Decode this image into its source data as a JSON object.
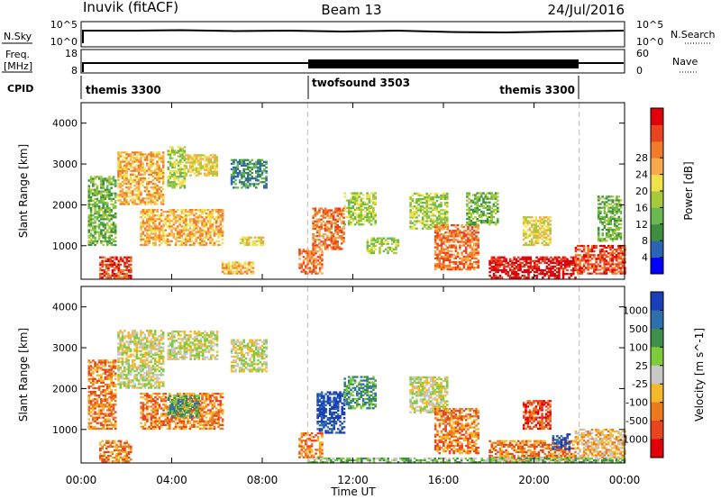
{
  "header": {
    "station": "Inuvik (fitACF)",
    "beam": "Beam 13",
    "date": "24/Jul/2016"
  },
  "top_panels": {
    "nsky": {
      "label": "N.Sky",
      "ticks": [
        "10^5",
        "10^0"
      ],
      "right_label": "N.Search",
      "right_ticks": [
        "10^5",
        "10^0"
      ]
    },
    "freq": {
      "label_line1": "Freq.",
      "label_line2": "[MHz]",
      "ticks": [
        "18",
        "8"
      ],
      "right_label": "Nave",
      "right_ticks": [
        "60",
        "0"
      ]
    },
    "cpid": {
      "label": "CPID",
      "segments": [
        {
          "name": "themis 3300",
          "start": 0,
          "end": 10
        },
        {
          "name": "twofsound 3503",
          "start": 10,
          "end": 22
        },
        {
          "name": "themis 3300",
          "start": 22,
          "end": 24
        }
      ]
    }
  },
  "x_axis": {
    "label": "Time UT",
    "ticks": [
      "00:00",
      "04:00",
      "08:00",
      "12:00",
      "16:00",
      "20:00",
      "00:00"
    ]
  },
  "chart_data": [
    {
      "type": "heatmap",
      "name": "power",
      "ylabel": "Slant Range [km]",
      "xlim": [
        0,
        24
      ],
      "ylim": [
        180,
        4500
      ],
      "yticks": [
        "1000",
        "2000",
        "3000",
        "4000"
      ],
      "colorbar_label": "Power [dB]",
      "colorbar_ticks": [
        "4",
        "8",
        "12",
        "16",
        "20",
        "24",
        "28"
      ],
      "colorbar_colors": [
        "#0000ff",
        "#2d63b4",
        "#3d8f3d",
        "#69b84f",
        "#a8c93a",
        "#f0e14a",
        "#f7a94a",
        "#f07c2a",
        "#e8441f",
        "#e0000a"
      ],
      "regions": [
        {
          "t0": 0.3,
          "t1": 1.5,
          "r0": 1000,
          "r1": 2700,
          "level": 3
        },
        {
          "t0": 1.6,
          "t1": 3.6,
          "r0": 2000,
          "r1": 3300,
          "level": 6
        },
        {
          "t0": 3.8,
          "t1": 4.6,
          "r0": 2400,
          "r1": 3400,
          "level": 4
        },
        {
          "t0": 4.6,
          "t1": 6.0,
          "r0": 2700,
          "r1": 3200,
          "level": 5
        },
        {
          "t0": 2.6,
          "t1": 6.2,
          "r0": 1000,
          "r1": 1900,
          "level": 6
        },
        {
          "t0": 6.6,
          "t1": 8.2,
          "r0": 2400,
          "r1": 3100,
          "level": 2
        },
        {
          "t0": 7.0,
          "t1": 8.0,
          "r0": 1000,
          "r1": 1200,
          "level": 5
        },
        {
          "t0": 0.8,
          "t1": 2.2,
          "r0": 200,
          "r1": 700,
          "level": 8
        },
        {
          "t0": 6.2,
          "t1": 7.6,
          "r0": 300,
          "r1": 600,
          "level": 6
        },
        {
          "t0": 9.6,
          "t1": 10.6,
          "r0": 300,
          "r1": 900,
          "level": 7
        },
        {
          "t0": 10.2,
          "t1": 11.6,
          "r0": 900,
          "r1": 1900,
          "level": 7
        },
        {
          "t0": 11.6,
          "t1": 13.0,
          "r0": 1500,
          "r1": 2300,
          "level": 4
        },
        {
          "t0": 12.6,
          "t1": 14.0,
          "r0": 800,
          "r1": 1200,
          "level": 4
        },
        {
          "t0": 14.5,
          "t1": 16.2,
          "r0": 1400,
          "r1": 2300,
          "level": 4
        },
        {
          "t0": 15.6,
          "t1": 17.5,
          "r0": 400,
          "r1": 1500,
          "level": 7
        },
        {
          "t0": 17.0,
          "t1": 18.4,
          "r0": 1500,
          "r1": 2300,
          "level": 3
        },
        {
          "t0": 18.0,
          "t1": 21.8,
          "r0": 200,
          "r1": 700,
          "level": 9
        },
        {
          "t0": 19.5,
          "t1": 20.7,
          "r0": 1000,
          "r1": 1700,
          "level": 5
        },
        {
          "t0": 21.8,
          "t1": 24.0,
          "r0": 300,
          "r1": 1000,
          "level": 8
        },
        {
          "t0": 22.8,
          "t1": 23.8,
          "r0": 1100,
          "r1": 2200,
          "level": 3
        }
      ]
    },
    {
      "type": "heatmap",
      "name": "velocity",
      "ylabel": "Slant Range [km]",
      "xlim": [
        0,
        24
      ],
      "ylim": [
        180,
        4500
      ],
      "yticks": [
        "1000",
        "2000",
        "3000",
        "4000"
      ],
      "colorbar_label": "Velocity [m s^-1]",
      "colorbar_ticks": [
        "1000",
        "500",
        "100",
        "25",
        "-25",
        "-100",
        "-500",
        "-1000"
      ],
      "colorbar_colors": [
        "#1a3fb8",
        "#2e6fb0",
        "#3d8f4a",
        "#7fcc3a",
        "#c8c8c8",
        "#f5b82a",
        "#ef7a1c",
        "#e8441f",
        "#e0000a"
      ],
      "regions": [
        {
          "t0": 0.3,
          "t1": 1.5,
          "r0": 1000,
          "r1": 2700,
          "level": 6
        },
        {
          "t0": 1.6,
          "t1": 3.6,
          "r0": 2000,
          "r1": 3400,
          "level": 4
        },
        {
          "t0": 3.8,
          "t1": 6.0,
          "r0": 2700,
          "r1": 3400,
          "level": 4
        },
        {
          "t0": 2.6,
          "t1": 6.2,
          "r0": 1000,
          "r1": 1900,
          "level": 6
        },
        {
          "t0": 3.8,
          "t1": 5.2,
          "r0": 1300,
          "r1": 1800,
          "level": 2
        },
        {
          "t0": 6.6,
          "t1": 8.2,
          "r0": 2400,
          "r1": 3200,
          "level": 4
        },
        {
          "t0": 0.8,
          "t1": 2.2,
          "r0": 200,
          "r1": 700,
          "level": 6
        },
        {
          "t0": 9.6,
          "t1": 10.6,
          "r0": 300,
          "r1": 900,
          "level": 6
        },
        {
          "t0": 10.4,
          "t1": 11.6,
          "r0": 900,
          "r1": 1900,
          "level": 0
        },
        {
          "t0": 11.6,
          "t1": 13.0,
          "r0": 1500,
          "r1": 2300,
          "level": 2
        },
        {
          "t0": 14.5,
          "t1": 16.2,
          "r0": 1400,
          "r1": 2300,
          "level": 4
        },
        {
          "t0": 15.6,
          "t1": 17.5,
          "r0": 400,
          "r1": 1500,
          "level": 6
        },
        {
          "t0": 18.0,
          "t1": 21.8,
          "r0": 200,
          "r1": 700,
          "level": 6
        },
        {
          "t0": 19.5,
          "t1": 20.7,
          "r0": 1000,
          "r1": 1700,
          "level": 7
        },
        {
          "t0": 10.0,
          "t1": 24.0,
          "r0": 180,
          "r1": 300,
          "level": 3
        },
        {
          "t0": 21.8,
          "t1": 24.0,
          "r0": 300,
          "r1": 1000,
          "level": 5
        },
        {
          "t0": 20.8,
          "t1": 21.6,
          "r0": 500,
          "r1": 900,
          "level": 0
        }
      ]
    }
  ]
}
